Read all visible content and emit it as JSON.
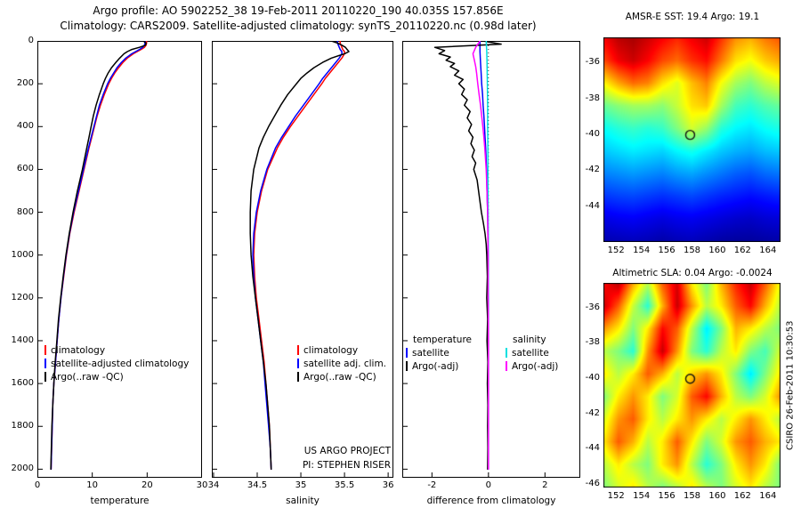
{
  "header": {
    "title_line1": "Argo profile: AO 5902252_38 19-Feb-2011 20110220_190 40.035S 157.856E",
    "title_line2": "Climatology: CARS2009. Satellite-adjusted climatology: synTS_20110220.nc (0.98d later)"
  },
  "watermark": "CSIRO 26-Feb-2011 10:30:53",
  "chart_data": [
    {
      "type": "line",
      "panel": "temperature-profile",
      "xlabel": "temperature",
      "xlim": [
        0,
        30
      ],
      "xticks": [
        0,
        10,
        20,
        30
      ],
      "ylim": [
        0,
        2040
      ],
      "yticks": [
        0,
        200,
        400,
        600,
        800,
        1000,
        1200,
        1400,
        1600,
        1800,
        2000
      ],
      "depths": [
        0,
        10,
        20,
        30,
        40,
        50,
        60,
        80,
        100,
        125,
        150,
        175,
        200,
        250,
        300,
        350,
        400,
        450,
        500,
        600,
        700,
        800,
        900,
        1000,
        1100,
        1200,
        1300,
        1400,
        1500,
        1600,
        1700,
        1800,
        1900,
        2000
      ],
      "series": [
        {
          "name": "climatology",
          "color": "#ff0000",
          "values": [
            19.9,
            19.9,
            19.8,
            19.5,
            18.9,
            18.2,
            17.5,
            16.4,
            15.6,
            14.8,
            14.1,
            13.5,
            13.0,
            12.2,
            11.5,
            10.9,
            10.4,
            9.9,
            9.4,
            8.5,
            7.6,
            6.7,
            5.9,
            5.3,
            4.8,
            4.3,
            3.9,
            3.6,
            3.3,
            3.0,
            2.8,
            2.7,
            2.6,
            2.5
          ]
        },
        {
          "name": "satellite-adjusted climatology",
          "color": "#0000ff",
          "values": [
            19.6,
            19.6,
            19.5,
            19.2,
            18.6,
            17.9,
            17.2,
            16.1,
            15.3,
            14.5,
            13.9,
            13.3,
            12.8,
            12.0,
            11.3,
            10.8,
            10.3,
            9.8,
            9.3,
            8.4,
            7.5,
            6.6,
            5.85,
            5.25,
            4.75,
            4.3,
            3.9,
            3.6,
            3.3,
            3.0,
            2.8,
            2.7,
            2.6,
            2.5
          ]
        },
        {
          "name": "Argo(..raw -QC)",
          "color": "#000000",
          "values": [
            19.3,
            19.8,
            19.7,
            18.6,
            17.2,
            16.4,
            15.8,
            15.0,
            14.3,
            13.5,
            12.9,
            12.4,
            12.0,
            11.3,
            10.7,
            10.2,
            9.8,
            9.4,
            9.0,
            8.2,
            7.3,
            6.5,
            5.8,
            5.2,
            4.7,
            4.25,
            3.85,
            3.55,
            3.25,
            3.0,
            2.8,
            2.65,
            2.55,
            2.45
          ]
        }
      ],
      "legend": [
        {
          "label": "climatology",
          "color": "#ff0000"
        },
        {
          "label": "satellite-adjusted climatology",
          "color": "#0000ff"
        },
        {
          "label": "Argo(..raw -QC)",
          "color": "#000000"
        }
      ]
    },
    {
      "type": "line",
      "panel": "salinity-profile",
      "xlabel": "salinity",
      "xlim": [
        33.98,
        36.06
      ],
      "xticks": [
        34,
        34.5,
        35,
        35.5,
        36
      ],
      "ylim": [
        0,
        2040
      ],
      "yticks": [
        0,
        200,
        400,
        600,
        800,
        1000,
        1200,
        1400,
        1600,
        1800,
        2000
      ],
      "depths": [
        0,
        10,
        20,
        30,
        40,
        50,
        60,
        80,
        100,
        125,
        150,
        175,
        200,
        250,
        300,
        350,
        400,
        450,
        500,
        600,
        700,
        800,
        900,
        1000,
        1100,
        1200,
        1300,
        1400,
        1500,
        1600,
        1700,
        1800,
        1900,
        2000
      ],
      "series": [
        {
          "name": "climatology",
          "color": "#ff0000",
          "values": [
            35.45,
            35.45,
            35.46,
            35.47,
            35.48,
            35.5,
            35.5,
            35.47,
            35.43,
            35.38,
            35.33,
            35.28,
            35.24,
            35.15,
            35.06,
            34.97,
            34.88,
            34.8,
            34.73,
            34.62,
            34.55,
            34.5,
            34.47,
            34.46,
            34.47,
            34.49,
            34.52,
            34.55,
            34.58,
            34.6,
            34.62,
            34.64,
            34.65,
            34.66
          ]
        },
        {
          "name": "satellite adj. clim.",
          "color": "#0000ff",
          "values": [
            35.42,
            35.42,
            35.43,
            35.44,
            35.45,
            35.47,
            35.47,
            35.44,
            35.4,
            35.35,
            35.3,
            35.25,
            35.21,
            35.12,
            35.03,
            34.94,
            34.86,
            34.78,
            34.71,
            34.61,
            34.54,
            34.49,
            34.46,
            34.45,
            34.46,
            34.48,
            34.51,
            34.54,
            34.57,
            34.59,
            34.61,
            34.63,
            34.65,
            34.66
          ]
        },
        {
          "name": "Argo(..raw -QC)",
          "color": "#000000",
          "values": [
            35.35,
            35.42,
            35.47,
            35.51,
            35.53,
            35.55,
            35.5,
            35.35,
            35.25,
            35.15,
            35.07,
            35.0,
            34.95,
            34.85,
            34.77,
            34.7,
            34.63,
            34.57,
            34.52,
            34.46,
            34.43,
            34.42,
            34.42,
            34.43,
            34.45,
            34.48,
            34.51,
            34.54,
            34.57,
            34.6,
            34.62,
            34.64,
            34.65,
            34.66
          ]
        }
      ],
      "legend": [
        {
          "label": "climatology",
          "color": "#ff0000"
        },
        {
          "label": "satellite adj. clim.",
          "color": "#0000ff"
        },
        {
          "label": "Argo(..raw -QC)",
          "color": "#000000"
        }
      ],
      "note": [
        "US ARGO PROJECT",
        "PI: STEPHEN RISER"
      ]
    },
    {
      "type": "line",
      "panel": "difference-from-climatology",
      "xlabel": "difference from climatology",
      "xlim": [
        -3.05,
        3.25
      ],
      "xticks": [
        -2,
        0,
        2
      ],
      "ylim": [
        0,
        2040
      ],
      "yticks": [
        0,
        200,
        400,
        600,
        800,
        1000,
        1200,
        1400,
        1600,
        1800,
        2000
      ],
      "zero_line": true,
      "series": [
        {
          "name": "temperature satellite",
          "color": "#0000ff",
          "depths": [
            0,
            50,
            100,
            150,
            200,
            250,
            300,
            350,
            400,
            450,
            500,
            600,
            700,
            800,
            900,
            1000,
            1200,
            1400,
            1600,
            1800,
            2000
          ],
          "values": [
            -0.3,
            -0.3,
            -0.28,
            -0.26,
            -0.24,
            -0.21,
            -0.19,
            -0.16,
            -0.14,
            -0.12,
            -0.1,
            -0.07,
            -0.05,
            -0.03,
            -0.02,
            -0.01,
            0,
            0,
            0,
            0,
            0
          ]
        },
        {
          "name": "temperature Argo(-adj)",
          "color": "#000000",
          "depths": [
            0,
            15,
            30,
            45,
            60,
            75,
            90,
            105,
            120,
            140,
            160,
            180,
            200,
            225,
            250,
            275,
            300,
            330,
            360,
            390,
            420,
            450,
            480,
            510,
            540,
            570,
            600,
            650,
            700,
            750,
            800,
            850,
            900,
            950,
            1000,
            1100,
            1200,
            1300,
            1400,
            1500,
            1600,
            1700,
            1800,
            1900,
            2000
          ],
          "values": [
            -0.2,
            0.45,
            -1.9,
            -1.55,
            -1.75,
            -1.35,
            -1.5,
            -1.2,
            -1.35,
            -1.05,
            -1.2,
            -0.9,
            -1.05,
            -0.85,
            -0.95,
            -0.75,
            -0.85,
            -0.65,
            -0.75,
            -0.6,
            -0.7,
            -0.55,
            -0.62,
            -0.5,
            -0.58,
            -0.45,
            -0.52,
            -0.4,
            -0.35,
            -0.3,
            -0.25,
            -0.18,
            -0.12,
            -0.08,
            -0.06,
            -0.04,
            -0.06,
            -0.03,
            -0.05,
            -0.02,
            -0.04,
            -0.02,
            -0.03,
            -0.02,
            -0.03
          ]
        },
        {
          "name": "salinity satellite",
          "color": "#00e0e0",
          "depths": [
            0,
            50,
            100,
            200,
            300,
            400,
            500,
            600,
            800,
            1000,
            1200,
            1400,
            1600,
            1800,
            2000
          ],
          "values": [
            -0.08,
            -0.06,
            -0.05,
            -0.04,
            -0.03,
            -0.03,
            -0.02,
            -0.02,
            -0.01,
            0,
            0,
            0,
            0,
            0,
            0
          ]
        },
        {
          "name": "salinity Argo(-adj)",
          "color": "#ff00ff",
          "depths": [
            0,
            30,
            60,
            90,
            120,
            150,
            200,
            250,
            300,
            350,
            400,
            450,
            500,
            600,
            700,
            800,
            900,
            1000,
            1200,
            1400,
            1600,
            1800,
            2000
          ],
          "values": [
            -0.3,
            -0.45,
            -0.55,
            -0.5,
            -0.45,
            -0.42,
            -0.38,
            -0.33,
            -0.28,
            -0.24,
            -0.2,
            -0.16,
            -0.13,
            -0.08,
            -0.05,
            -0.03,
            -0.02,
            -0.01,
            -0.01,
            0,
            0,
            0,
            0
          ]
        }
      ],
      "legend": {
        "col1_header": "temperature",
        "col1": [
          {
            "label": "satellite",
            "color": "#0000ff"
          },
          {
            "label": "Argo(-adj)",
            "color": "#000000"
          }
        ],
        "col2_header": "salinity",
        "col2": [
          {
            "label": "satellite",
            "color": "#00e0e0"
          },
          {
            "label": "Argo(-adj)",
            "color": "#ff00ff"
          }
        ]
      }
    },
    {
      "type": "heatmap",
      "panel": "amsre-sst-map",
      "title": "AMSR-E SST: 19.4 Argo: 19.1",
      "lon_range": [
        151,
        165
      ],
      "lat_range": [
        -34.6,
        -46.0
      ],
      "lon_ticks": [
        152,
        154,
        156,
        158,
        160,
        162,
        164
      ],
      "lat_ticks": [
        -36,
        -38,
        -40,
        -42,
        -44
      ],
      "scale": [
        9.5,
        26.5
      ],
      "marker": {
        "lon": 157.856,
        "lat": -40.035
      },
      "grid": [
        [
          24.5,
          25.5,
          25.8,
          25.2,
          24.5,
          23.8,
          24.6,
          25.2,
          23.6,
          22.0,
          21.5,
          22.4,
          23.0
        ],
        [
          23.2,
          24.6,
          25.2,
          24.4,
          23.2,
          22.6,
          23.6,
          24.2,
          22.4,
          20.6,
          20.0,
          21.0,
          21.6
        ],
        [
          20.2,
          21.6,
          22.6,
          22.2,
          20.6,
          19.6,
          21.2,
          22.2,
          20.0,
          18.6,
          18.0,
          19.0,
          19.6
        ],
        [
          17.6,
          18.2,
          18.6,
          18.6,
          18.2,
          19.2,
          20.6,
          21.0,
          18.6,
          17.0,
          16.6,
          17.2,
          17.6
        ],
        [
          16.0,
          16.5,
          16.8,
          16.5,
          16.8,
          18.0,
          19.4,
          18.4,
          16.5,
          15.8,
          15.5,
          16.0,
          16.3
        ],
        [
          15.0,
          15.3,
          15.6,
          15.4,
          15.2,
          15.8,
          16.2,
          15.6,
          15.0,
          14.6,
          14.4,
          14.8,
          15.0
        ],
        [
          13.8,
          14.0,
          14.2,
          14.0,
          13.8,
          14.2,
          14.4,
          14.0,
          13.6,
          13.2,
          13.0,
          13.4,
          13.6
        ],
        [
          12.5,
          12.7,
          12.8,
          12.6,
          12.4,
          12.6,
          12.8,
          12.5,
          12.2,
          12.0,
          11.8,
          12.0,
          12.2
        ],
        [
          11.2,
          11.4,
          11.5,
          11.3,
          11.1,
          11.3,
          11.4,
          11.2,
          11.0,
          10.8,
          10.7,
          10.9,
          11.0
        ],
        [
          10.3,
          10.4,
          10.5,
          10.4,
          10.2,
          10.4,
          10.5,
          10.3,
          10.1,
          10.0,
          10.0,
          10.1,
          10.2
        ]
      ]
    },
    {
      "type": "heatmap",
      "panel": "altimetric-sla-map",
      "title": "Altimetric SLA: 0.04 Argo: -0.0024",
      "lon_range": [
        151,
        165
      ],
      "lat_range": [
        -34.6,
        -46.2
      ],
      "lon_ticks": [
        152,
        154,
        156,
        158,
        160,
        162,
        164
      ],
      "lat_ticks": [
        -36,
        -38,
        -40,
        -42,
        -44,
        -46
      ],
      "scale": [
        -0.35,
        0.35
      ],
      "marker": {
        "lon": 157.856,
        "lat": -40.035
      },
      "grid": [
        [
          0.26,
          0.31,
          0.15,
          0.04,
          0.2,
          0.29,
          0.1,
          0.0,
          0.14,
          0.24,
          0.3,
          0.2,
          0.08
        ],
        [
          0.3,
          0.2,
          0.05,
          -0.06,
          0.14,
          0.3,
          0.16,
          0.04,
          0.1,
          0.2,
          0.26,
          0.14,
          0.04
        ],
        [
          0.16,
          0.1,
          0.0,
          0.1,
          0.26,
          0.2,
          0.04,
          -0.1,
          0.0,
          0.14,
          0.1,
          0.04,
          0.0
        ],
        [
          0.04,
          0.0,
          -0.06,
          0.16,
          0.3,
          0.16,
          0.0,
          -0.06,
          0.04,
          0.1,
          0.0,
          -0.04,
          0.06
        ],
        [
          0.1,
          0.04,
          0.1,
          0.2,
          0.14,
          0.04,
          0.12,
          0.16,
          0.1,
          0.0,
          -0.1,
          0.0,
          0.1
        ],
        [
          0.0,
          0.1,
          0.16,
          0.1,
          0.0,
          0.06,
          0.2,
          0.26,
          0.14,
          0.04,
          0.0,
          0.06,
          0.16
        ],
        [
          0.06,
          0.16,
          0.2,
          0.1,
          0.04,
          0.1,
          0.16,
          0.1,
          0.04,
          0.1,
          0.16,
          0.1,
          0.04
        ],
        [
          0.1,
          0.2,
          0.14,
          0.04,
          0.1,
          0.2,
          0.1,
          0.0,
          0.06,
          0.16,
          0.2,
          0.14,
          0.1
        ],
        [
          0.04,
          0.1,
          0.04,
          0.0,
          0.1,
          0.16,
          0.04,
          -0.06,
          0.0,
          0.1,
          0.16,
          0.1,
          0.0
        ],
        [
          0.0,
          0.06,
          0.1,
          0.04,
          0.0,
          0.04,
          0.1,
          0.04,
          0.0,
          0.06,
          0.1,
          0.04,
          0.0
        ]
      ]
    }
  ]
}
